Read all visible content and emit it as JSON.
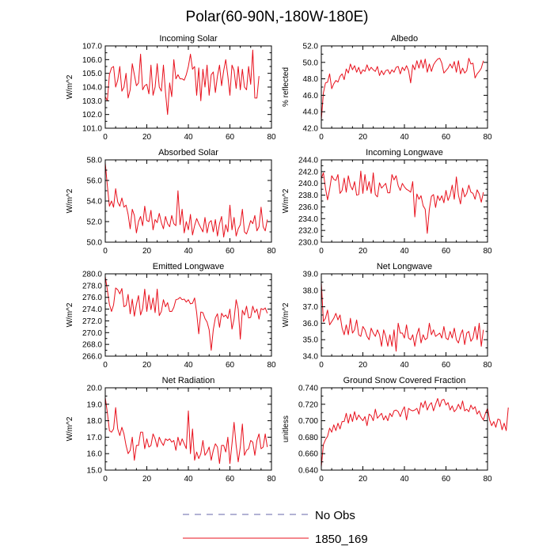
{
  "figure_title": "Polar(60-90N,-180W-180E)",
  "legend": {
    "entries": [
      {
        "label": "No Obs",
        "style": "dashed",
        "color": "#6666aa"
      },
      {
        "label": "1850_169",
        "style": "solid",
        "color": "#e8101c"
      }
    ]
  },
  "chart_data": [
    {
      "type": "line",
      "title": "Incoming Solar",
      "ylabel": "W/m^2",
      "xlim": [
        0,
        80
      ],
      "ylim": [
        101.0,
        107.0
      ],
      "xticks": [
        0,
        20,
        40,
        60,
        80
      ],
      "yticks": [
        101.0,
        102.0,
        103.0,
        104.0,
        105.0,
        106.0,
        107.0
      ],
      "ytick_labels": [
        "101.0",
        "102.0",
        "103.0",
        "104.0",
        "105.0",
        "106.0",
        "107.0"
      ],
      "series": [
        {
          "name": "1850_169",
          "color": "#e8101c",
          "values": [
            103.3,
            103.0,
            104.9,
            105.4,
            105.5,
            104.0,
            104.5,
            105.5,
            103.7,
            104.0,
            105.0,
            103.2,
            103.8,
            105.7,
            104.9,
            104.1,
            104.3,
            106.4,
            103.8,
            104.1,
            104.2,
            103.5,
            105.6,
            103.4,
            104.0,
            105.7,
            104.0,
            103.7,
            105.6,
            103.6,
            102.0,
            104.3,
            103.3,
            106.0,
            104.6,
            104.9,
            104.6,
            104.6,
            104.5,
            104.9,
            105.5,
            106.4,
            105.3,
            105.5,
            103.4,
            105.4,
            103.0,
            105.3,
            104.0,
            105.6,
            103.4,
            104.9,
            105.1,
            103.6,
            104.8,
            105.6,
            104.1,
            105.2,
            106.0,
            104.8,
            103.4,
            105.6,
            105.2,
            103.9,
            105.5,
            103.8,
            105.3,
            104.0,
            103.8,
            105.5,
            104.2,
            106.7,
            103.2,
            103.2,
            104.8
          ]
        }
      ]
    },
    {
      "type": "line",
      "title": "Albedo",
      "ylabel": "% reflected",
      "xlim": [
        0,
        80
      ],
      "ylim": [
        42.0,
        52.0
      ],
      "xticks": [
        0,
        20,
        40,
        60,
        80
      ],
      "yticks": [
        42.0,
        44.0,
        46.0,
        48.0,
        50.0,
        52.0
      ],
      "ytick_labels": [
        "42.0",
        "44.0",
        "46.0",
        "48.0",
        "50.0",
        "52.0"
      ],
      "series": [
        {
          "name": "1850_169",
          "color": "#e8101c",
          "values": [
            43.0,
            46.3,
            47.5,
            47.6,
            48.6,
            46.8,
            47.4,
            47.8,
            47.6,
            48.3,
            48.6,
            47.9,
            49.2,
            48.7,
            49.8,
            49.1,
            49.6,
            48.8,
            49.4,
            48.6,
            49.1,
            48.9,
            49.7,
            49.0,
            49.4,
            49.1,
            48.9,
            49.5,
            48.4,
            49.0,
            48.5,
            49.0,
            49.1,
            48.6,
            49.1,
            48.8,
            49.4,
            49.5,
            48.6,
            49.4,
            49.0,
            49.6,
            49.0,
            47.5,
            49.7,
            49.1,
            50.2,
            49.3,
            50.3,
            49.3,
            50.4,
            48.8,
            49.8,
            48.9,
            49.7,
            50.1,
            50.4,
            50.5,
            49.9,
            48.7,
            49.0,
            49.3,
            49.8,
            49.3,
            50.1,
            48.8,
            50.2,
            48.6,
            49.3,
            48.7,
            49.0,
            50.5,
            49.8,
            49.9,
            48.1,
            48.6,
            48.9,
            49.3,
            50.2
          ]
        }
      ]
    },
    {
      "type": "line",
      "title": "Absorbed Solar",
      "ylabel": "W/m^2",
      "xlim": [
        0,
        80
      ],
      "ylim": [
        50.0,
        58.0
      ],
      "xticks": [
        0,
        20,
        40,
        60,
        80
      ],
      "yticks": [
        50.0,
        52.0,
        54.0,
        56.0,
        58.0
      ],
      "ytick_labels": [
        "50.0",
        "52.0",
        "54.0",
        "56.0",
        "58.0"
      ],
      "series": [
        {
          "name": "1850_169",
          "color": "#e8101c",
          "values": [
            57.7,
            55.5,
            53.5,
            54.0,
            53.4,
            55.2,
            53.9,
            53.5,
            54.3,
            53.4,
            53.6,
            52.7,
            51.3,
            53.2,
            52.6,
            50.9,
            52.0,
            52.5,
            51.6,
            53.5,
            52.1,
            52.0,
            53.1,
            51.2,
            52.2,
            51.9,
            52.8,
            51.9,
            51.3,
            52.5,
            51.8,
            51.5,
            52.6,
            51.8,
            51.6,
            55.0,
            51.7,
            53.2,
            50.9,
            52.0,
            51.2,
            52.7,
            50.7,
            51.6,
            52.3,
            51.8,
            51.4,
            51.0,
            52.4,
            50.9,
            51.9,
            52.1,
            51.0,
            52.2,
            50.6,
            51.8,
            52.5,
            50.5,
            51.7,
            51.0,
            53.6,
            51.2,
            52.4,
            50.6,
            51.3,
            51.7,
            53.2,
            51.0,
            50.8,
            51.4,
            52.1,
            51.8,
            52.6,
            51.1,
            51.5,
            53.4,
            51.5,
            51.1,
            52.2
          ]
        }
      ]
    },
    {
      "type": "line",
      "title": "Incoming Longwave",
      "ylabel": "W/m^2",
      "xlim": [
        0,
        80
      ],
      "ylim": [
        230.0,
        244.0
      ],
      "xticks": [
        0,
        20,
        40,
        60,
        80
      ],
      "yticks": [
        230.0,
        232.0,
        234.0,
        236.0,
        238.0,
        240.0,
        242.0,
        244.0
      ],
      "ytick_labels": [
        "230.0",
        "232.0",
        "234.0",
        "236.0",
        "238.0",
        "240.0",
        "242.0",
        "244.0"
      ],
      "series": [
        {
          "name": "1850_169",
          "color": "#e8101c",
          "values": [
            240.8,
            241.8,
            239.2,
            237.2,
            239.0,
            241.3,
            240.7,
            240.5,
            241.5,
            238.3,
            238.8,
            240.9,
            238.5,
            241.3,
            239.6,
            238.9,
            240.3,
            238.0,
            238.1,
            242.1,
            238.3,
            241.5,
            238.8,
            240.3,
            238.3,
            241.8,
            238.1,
            237.7,
            240.1,
            239.2,
            239.6,
            240.0,
            238.4,
            238.4,
            241.5,
            240.6,
            241.3,
            239.6,
            238.8,
            240.0,
            239.4,
            239.0,
            238.8,
            238.5,
            240.3,
            234.3,
            238.2,
            237.3,
            237.9,
            236.2,
            235.6,
            231.5,
            235.6,
            237.8,
            238.1,
            235.9,
            237.9,
            237.1,
            237.9,
            236.7,
            238.8,
            237.1,
            238.0,
            239.7,
            237.3,
            241.1,
            238.0,
            236.5,
            239.2,
            237.7,
            238.3,
            239.7,
            238.5,
            238.3,
            237.3,
            238.9,
            238.2,
            236.8,
            238.5
          ]
        }
      ]
    },
    {
      "type": "line",
      "title": "Emitted Longwave",
      "ylabel": "W/m^2",
      "xlim": [
        0,
        80
      ],
      "ylim": [
        266.0,
        280.0
      ],
      "xticks": [
        0,
        20,
        40,
        60,
        80
      ],
      "yticks": [
        266.0,
        268.0,
        270.0,
        272.0,
        274.0,
        276.0,
        278.0,
        280.0
      ],
      "ytick_labels": [
        "266.0",
        "268.0",
        "270.0",
        "272.0",
        "274.0",
        "276.0",
        "278.0",
        "280.0"
      ],
      "series": [
        {
          "name": "1850_169",
          "color": "#e8101c",
          "values": [
            279.5,
            277.3,
            274.8,
            273.6,
            274.7,
            277.6,
            277.3,
            276.6,
            277.5,
            274.4,
            274.6,
            276.5,
            273.2,
            275.7,
            272.8,
            274.8,
            276.3,
            273.0,
            274.1,
            277.4,
            273.6,
            276.4,
            273.9,
            275.9,
            273.4,
            277.4,
            272.9,
            273.6,
            275.6,
            274.4,
            275.1,
            273.6,
            273.6,
            274.3,
            275.6,
            275.7,
            276.0,
            275.6,
            275.7,
            275.2,
            275.6,
            274.9,
            275.0,
            275.9,
            273.4,
            269.8,
            273.5,
            273.4,
            272.4,
            271.8,
            270.5,
            267.0,
            270.5,
            272.5,
            273.2,
            270.9,
            273.3,
            272.7,
            273.0,
            272.4,
            274.0,
            270.6,
            272.3,
            275.6,
            274.0,
            268.9,
            273.8,
            273.0,
            274.5,
            272.5,
            272.6,
            274.5,
            273.4,
            274.0,
            272.3,
            274.1,
            273.9,
            274.2,
            273.3
          ]
        }
      ]
    },
    {
      "type": "line",
      "title": "Net Longwave",
      "ylabel": "W/m^2",
      "xlim": [
        0,
        80
      ],
      "ylim": [
        34.0,
        39.0
      ],
      "xticks": [
        0,
        20,
        40,
        60,
        80
      ],
      "yticks": [
        34.0,
        35.0,
        36.0,
        37.0,
        38.0,
        39.0
      ],
      "ytick_labels": [
        "34.0",
        "35.0",
        "36.0",
        "37.0",
        "38.0",
        "39.0"
      ],
      "series": [
        {
          "name": "1850_169",
          "color": "#e8101c",
          "values": [
            38.5,
            36.1,
            36.3,
            36.8,
            35.9,
            36.1,
            36.3,
            36.6,
            36.2,
            36.5,
            35.7,
            35.3,
            35.9,
            35.3,
            36.3,
            35.4,
            35.6,
            36.2,
            35.3,
            35.2,
            35.8,
            35.6,
            35.2,
            35.0,
            35.7,
            35.4,
            35.2,
            35.6,
            35.3,
            34.6,
            35.6,
            35.2,
            34.6,
            35.3,
            34.6,
            35.6,
            34.3,
            36.0,
            35.4,
            35.4,
            35.1,
            35.9,
            35.1,
            35.0,
            35.3,
            34.6,
            35.3,
            35.7,
            34.8,
            35.3,
            35.0,
            35.1,
            36.0,
            35.3,
            35.6,
            35.2,
            35.3,
            35.4,
            35.1,
            35.8,
            35.1,
            35.0,
            35.5,
            35.1,
            35.7,
            35.0,
            34.8,
            35.3,
            35.6,
            34.7,
            35.4,
            35.5,
            34.9,
            35.1,
            35.8,
            35.0,
            36.0,
            34.6,
            35.6
          ]
        }
      ]
    },
    {
      "type": "line",
      "title": "Net Radiation",
      "ylabel": "W/m^2",
      "xlim": [
        0,
        80
      ],
      "ylim": [
        15.0,
        20.0
      ],
      "xticks": [
        0,
        20,
        40,
        60,
        80
      ],
      "yticks": [
        15.0,
        16.0,
        17.0,
        18.0,
        19.0,
        20.0
      ],
      "ytick_labels": [
        "15.0",
        "16.0",
        "17.0",
        "18.0",
        "19.0",
        "20.0"
      ],
      "series": [
        {
          "name": "1850_169",
          "color": "#e8101c",
          "values": [
            19.4,
            18.5,
            17.4,
            17.3,
            17.5,
            18.8,
            17.5,
            17.1,
            17.6,
            17.2,
            16.5,
            16.0,
            16.2,
            17.0,
            15.6,
            16.5,
            16.5,
            17.3,
            17.3,
            16.3,
            16.9,
            16.4,
            16.5,
            17.2,
            16.9,
            16.4,
            17.0,
            16.7,
            16.5,
            16.9,
            16.8,
            16.9,
            16.7,
            16.8,
            16.2,
            17.0,
            16.5,
            16.9,
            16.6,
            16.3,
            18.6,
            16.0,
            17.5,
            15.6,
            16.1,
            15.7,
            16.0,
            16.8,
            15.9,
            16.1,
            16.4,
            15.6,
            16.2,
            16.6,
            16.4,
            15.4,
            16.5,
            16.5,
            16.1,
            17.0,
            15.4,
            16.6,
            17.9,
            16.5,
            15.5,
            16.4,
            17.8,
            15.9,
            16.2,
            16.3,
            16.8,
            16.7,
            15.9,
            16.8,
            17.2,
            16.3,
            16.4,
            17.2,
            16.4
          ]
        }
      ]
    },
    {
      "type": "line",
      "title": "Ground Snow Covered Fraction",
      "ylabel": "unitless",
      "xlim": [
        0,
        80
      ],
      "ylim": [
        0.64,
        0.74
      ],
      "xticks": [
        0,
        20,
        40,
        60,
        80
      ],
      "yticks": [
        0.64,
        0.66,
        0.68,
        0.7,
        0.72,
        0.74
      ],
      "ytick_labels": [
        "0.640",
        "0.660",
        "0.680",
        "0.700",
        "0.720",
        "0.740"
      ],
      "series": [
        {
          "name": "1850_169",
          "color": "#e8101c",
          "values": [
            0.644,
            0.671,
            0.677,
            0.681,
            0.691,
            0.686,
            0.695,
            0.688,
            0.697,
            0.69,
            0.699,
            0.699,
            0.709,
            0.697,
            0.708,
            0.699,
            0.711,
            0.701,
            0.707,
            0.703,
            0.7,
            0.705,
            0.694,
            0.708,
            0.706,
            0.7,
            0.714,
            0.703,
            0.706,
            0.709,
            0.701,
            0.706,
            0.7,
            0.709,
            0.705,
            0.712,
            0.713,
            0.711,
            0.705,
            0.712,
            0.717,
            0.701,
            0.715,
            0.713,
            0.712,
            0.713,
            0.715,
            0.708,
            0.722,
            0.716,
            0.724,
            0.713,
            0.719,
            0.722,
            0.712,
            0.72,
            0.727,
            0.717,
            0.725,
            0.726,
            0.719,
            0.722,
            0.713,
            0.718,
            0.711,
            0.714,
            0.72,
            0.714,
            0.724,
            0.712,
            0.714,
            0.711,
            0.719,
            0.714,
            0.717,
            0.708,
            0.712,
            0.705,
            0.701,
            0.709,
            0.715,
            0.701,
            0.694,
            0.699,
            0.692,
            0.702,
            0.701,
            0.689,
            0.697,
            0.688,
            0.716
          ]
        }
      ]
    }
  ]
}
